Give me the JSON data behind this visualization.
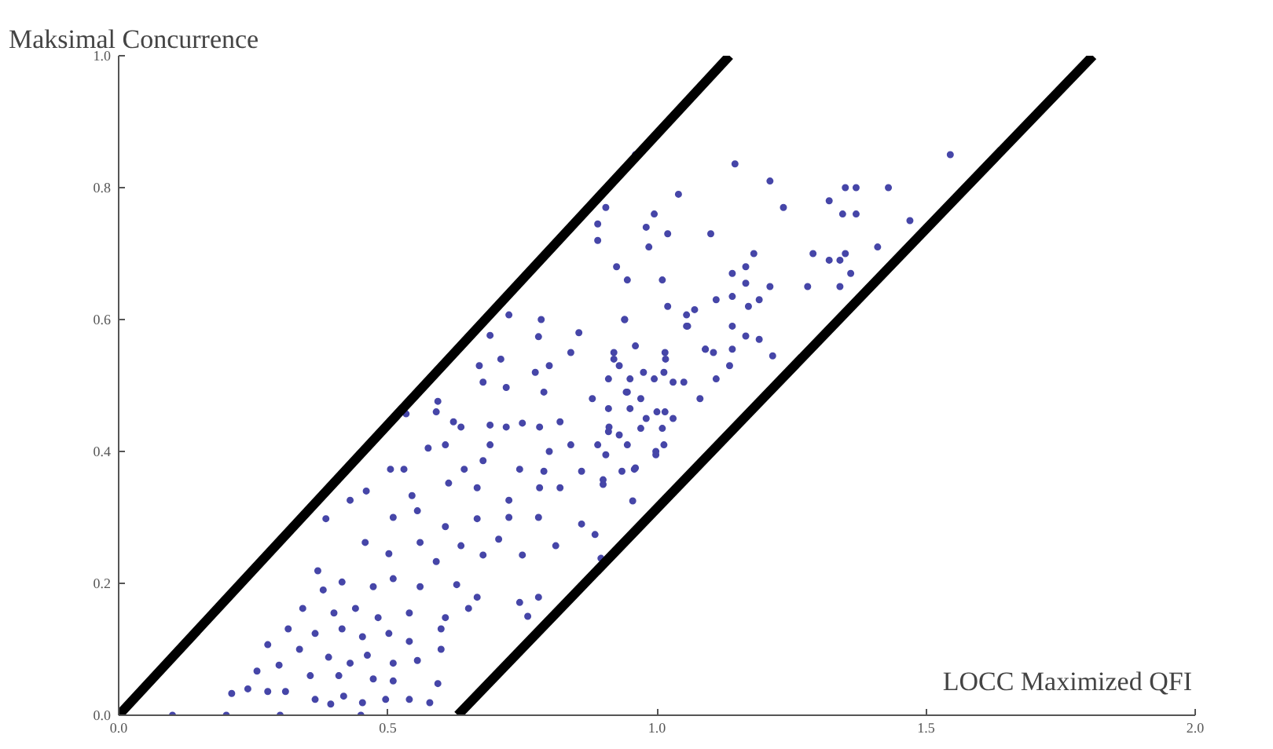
{
  "chart_data": {
    "type": "scatter",
    "xlabel": "LOCC Maximized QFI",
    "ylabel": "Maksimal Concurrence",
    "marker": "circle",
    "xlim": [
      0,
      2
    ],
    "ylim": [
      0,
      1
    ],
    "xticks": [
      {
        "value": 0,
        "label": "0.0"
      },
      {
        "value": 0.5,
        "label": "0.5"
      },
      {
        "value": 1,
        "label": "1.0"
      },
      {
        "value": 1.5,
        "label": "1.5"
      },
      {
        "value": 2,
        "label": "2.0"
      }
    ],
    "yticks": [
      {
        "value": 0,
        "label": "0.0"
      },
      {
        "value": 0.2,
        "label": "0.2"
      },
      {
        "value": 0.4,
        "label": "0.4"
      },
      {
        "value": 0.6,
        "label": "0.6"
      },
      {
        "value": 0.8,
        "label": "0.8"
      },
      {
        "value": 1,
        "label": "1.0"
      }
    ],
    "series": [
      {
        "color": "#4646a8",
        "x": [
          1.545,
          1.145,
          1.21,
          1.04,
          1.35,
          1.37,
          1.43,
          1.32,
          1.235,
          1.345,
          1.37,
          1.47,
          1.41,
          1.29,
          1.32,
          1.34,
          1.35,
          1.36,
          1.28,
          1.34,
          1.1,
          1.18,
          1.165,
          1.14,
          1.21,
          1.165,
          1.14,
          1.19,
          1.11,
          1.17,
          1.07,
          1.055,
          1.055,
          1.14,
          1.165,
          1.19,
          1.215,
          1.09,
          1.105,
          1.14,
          1.135,
          1.11,
          1.08,
          0.995,
          0.98,
          1.02,
          0.985,
          0.905,
          0.925,
          0.945,
          1.01,
          1.02,
          0.94,
          0.96,
          0.92,
          1.015,
          0.93,
          0.975,
          1.013,
          0.91,
          0.95,
          0.995,
          1.03,
          1.05,
          0.945,
          0.97,
          0.91,
          0.95,
          1.015,
          1.03,
          0.98,
          0.97,
          1.01,
          0.91,
          0.93,
          0.945,
          1.013,
          0.998,
          0.905,
          0.96,
          0.935,
          0.9,
          0.955,
          0.89,
          0.89,
          0.96,
          0.69,
          0.78,
          0.855,
          0.725,
          0.785,
          0.94,
          1.057,
          0.67,
          0.71,
          0.84,
          0.8,
          0.92,
          1.09,
          0.677,
          0.72,
          0.774,
          0.79,
          0.88,
          0.943,
          1.016,
          0.593,
          0.534,
          0.59,
          0.622,
          0.636,
          0.69,
          0.72,
          0.75,
          0.782,
          0.82,
          0.911,
          1.0,
          0.575,
          0.607,
          0.69,
          0.8,
          0.84,
          0.89,
          0.998,
          0.505,
          0.53,
          0.642,
          0.677,
          0.745,
          0.79,
          0.86,
          0.958,
          0.46,
          0.545,
          0.613,
          0.666,
          0.725,
          0.782,
          0.82,
          0.9,
          0.385,
          0.43,
          0.51,
          0.555,
          0.607,
          0.666,
          0.725,
          0.78,
          0.86,
          0.885,
          0.37,
          0.458,
          0.502,
          0.56,
          0.59,
          0.636,
          0.677,
          0.706,
          0.75,
          0.812,
          0.896,
          0.38,
          0.415,
          0.473,
          0.51,
          0.56,
          0.628,
          0.666,
          0.745,
          0.78,
          0.342,
          0.4,
          0.44,
          0.482,
          0.54,
          0.607,
          0.65,
          0.76,
          0.315,
          0.365,
          0.415,
          0.453,
          0.502,
          0.54,
          0.599,
          0.277,
          0.336,
          0.39,
          0.43,
          0.462,
          0.51,
          0.555,
          0.599,
          0.257,
          0.298,
          0.356,
          0.409,
          0.473,
          0.51,
          0.593,
          0.24,
          0.277,
          0.31,
          0.365,
          0.418,
          0.453,
          0.496,
          0.54,
          0.578,
          0.394,
          0.21,
          0.1,
          0.2,
          0.3,
          0.45
        ],
        "values": [
          0.85,
          0.836,
          0.81,
          0.79,
          0.8,
          0.8,
          0.8,
          0.78,
          0.77,
          0.76,
          0.76,
          0.75,
          0.71,
          0.7,
          0.69,
          0.69,
          0.7,
          0.67,
          0.65,
          0.65,
          0.73,
          0.7,
          0.68,
          0.67,
          0.65,
          0.655,
          0.635,
          0.63,
          0.63,
          0.62,
          0.615,
          0.607,
          0.59,
          0.59,
          0.575,
          0.57,
          0.545,
          0.555,
          0.55,
          0.555,
          0.53,
          0.51,
          0.48,
          0.76,
          0.74,
          0.73,
          0.71,
          0.77,
          0.68,
          0.66,
          0.66,
          0.62,
          0.6,
          0.56,
          0.55,
          0.55,
          0.53,
          0.52,
          0.52,
          0.51,
          0.51,
          0.51,
          0.505,
          0.505,
          0.49,
          0.48,
          0.465,
          0.465,
          0.46,
          0.45,
          0.45,
          0.435,
          0.435,
          0.43,
          0.425,
          0.41,
          0.41,
          0.395,
          0.395,
          0.375,
          0.37,
          0.35,
          0.325,
          0.745,
          0.72,
          0.85,
          0.576,
          0.574,
          0.58,
          0.607,
          0.6,
          0.6,
          0.59,
          0.53,
          0.54,
          0.55,
          0.53,
          0.54,
          0.555,
          0.505,
          0.497,
          0.52,
          0.49,
          0.48,
          0.49,
          0.54,
          0.476,
          0.457,
          0.46,
          0.445,
          0.437,
          0.44,
          0.437,
          0.443,
          0.437,
          0.445,
          0.437,
          0.46,
          0.405,
          0.41,
          0.41,
          0.4,
          0.41,
          0.41,
          0.4,
          0.373,
          0.373,
          0.373,
          0.386,
          0.373,
          0.37,
          0.37,
          0.373,
          0.34,
          0.333,
          0.352,
          0.345,
          0.326,
          0.345,
          0.345,
          0.357,
          0.298,
          0.326,
          0.3,
          0.31,
          0.286,
          0.298,
          0.3,
          0.3,
          0.29,
          0.274,
          0.219,
          0.262,
          0.245,
          0.262,
          0.233,
          0.257,
          0.243,
          0.267,
          0.243,
          0.257,
          0.238,
          0.19,
          0.202,
          0.195,
          0.207,
          0.195,
          0.198,
          0.179,
          0.171,
          0.179,
          0.162,
          0.155,
          0.162,
          0.148,
          0.155,
          0.148,
          0.162,
          0.15,
          0.131,
          0.124,
          0.131,
          0.119,
          0.124,
          0.112,
          0.131,
          0.107,
          0.1,
          0.088,
          0.079,
          0.091,
          0.079,
          0.083,
          0.1,
          0.067,
          0.076,
          0.06,
          0.06,
          0.055,
          0.052,
          0.048,
          0.04,
          0.036,
          0.036,
          0.024,
          0.029,
          0.019,
          0.024,
          0.024,
          0.019,
          0.017,
          0.033,
          0,
          0,
          0,
          0
        ]
      },
      {
        "type": "line",
        "marker": "none",
        "color": "#000000",
        "x": [
          0,
          1.135
        ],
        "values": [
          0,
          1.0
        ]
      },
      {
        "type": "line",
        "marker": "none",
        "color": "#000000",
        "x": [
          0.63,
          1.81
        ],
        "values": [
          0,
          1.0
        ]
      }
    ]
  }
}
